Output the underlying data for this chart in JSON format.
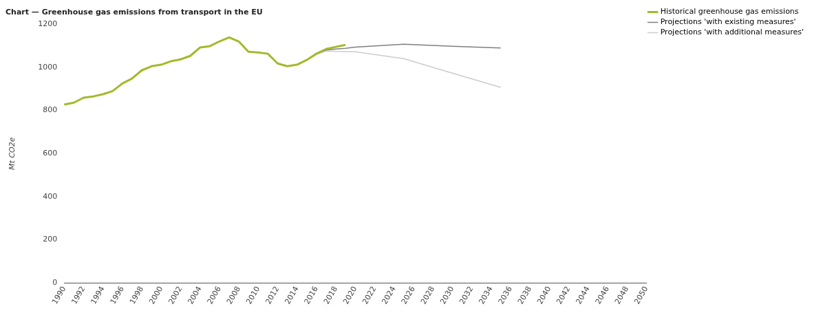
{
  "chart_data": {
    "type": "line",
    "title": "Chart — Greenhouse gas emissions from transport in the EU",
    "ylabel": "Mt CO2e",
    "xlim": [
      1990,
      2050
    ],
    "xticks": [
      1990,
      1992,
      1994,
      1996,
      1998,
      2000,
      2002,
      2004,
      2006,
      2008,
      2010,
      2012,
      2014,
      2016,
      2018,
      2020,
      2022,
      2024,
      2026,
      2028,
      2030,
      2032,
      2034,
      2036,
      2038,
      2040,
      2042,
      2044,
      2046,
      2048,
      2050
    ],
    "ylim": [
      0,
      1200
    ],
    "yticks": [
      0,
      200,
      400,
      600,
      800,
      1000,
      1200
    ],
    "grid": false,
    "legend": "top right",
    "marker": "none",
    "line_style": "solid",
    "series": [
      {
        "name": "Historical greenhouse gas emissions",
        "color": "#a5b82a",
        "x": [
          1990,
          1991,
          1992,
          1993,
          1994,
          1995,
          1996,
          1997,
          1998,
          1999,
          2000,
          2001,
          2002,
          2003,
          2004,
          2005,
          2006,
          2007,
          2008,
          2009,
          2010,
          2011,
          2012,
          2013,
          2014,
          2015,
          2016,
          2017,
          2018,
          2019
        ],
        "values": [
          827,
          836,
          859,
          865,
          875,
          890,
          925,
          948,
          986,
          1005,
          1012,
          1028,
          1037,
          1053,
          1092,
          1098,
          1120,
          1139,
          1120,
          1072,
          1069,
          1063,
          1018,
          1005,
          1012,
          1034,
          1063,
          1085,
          1095,
          1104
        ]
      },
      {
        "name": "Projections 'with existing measures'",
        "color": "#7f7f7f",
        "x": [
          2015,
          2016,
          2017,
          2018,
          2019,
          2020,
          2025,
          2030,
          2035
        ],
        "values": [
          1034,
          1063,
          1080,
          1085,
          1088,
          1094,
          1107,
          1098,
          1090
        ]
      },
      {
        "name": "Projections 'with additional measures'",
        "color": "#cccccc",
        "x": [
          2015,
          2016,
          2017,
          2020,
          2025,
          2030,
          2035
        ],
        "values": [
          1034,
          1060,
          1075,
          1072,
          1040,
          973,
          907
        ]
      }
    ]
  }
}
